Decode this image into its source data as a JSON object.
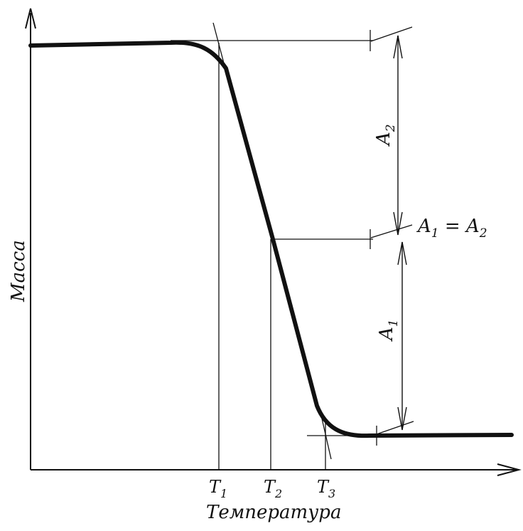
{
  "axes": {
    "y_label": "Масса",
    "x_label": "Температура"
  },
  "ticks": {
    "t1": {
      "main": "T",
      "sub": "1"
    },
    "t2": {
      "main": "T",
      "sub": "2"
    },
    "t3": {
      "main": "T",
      "sub": "3"
    }
  },
  "dimensions": {
    "a2": {
      "main": "A",
      "sub": "2"
    },
    "a1": {
      "main": "A",
      "sub": "1"
    },
    "equality": {
      "left": "A",
      "left_sub": "1",
      "sign": " = ",
      "right": "A",
      "right_sub": "2"
    }
  },
  "colors": {
    "ink": "#111111",
    "background": "#ffffff"
  }
}
